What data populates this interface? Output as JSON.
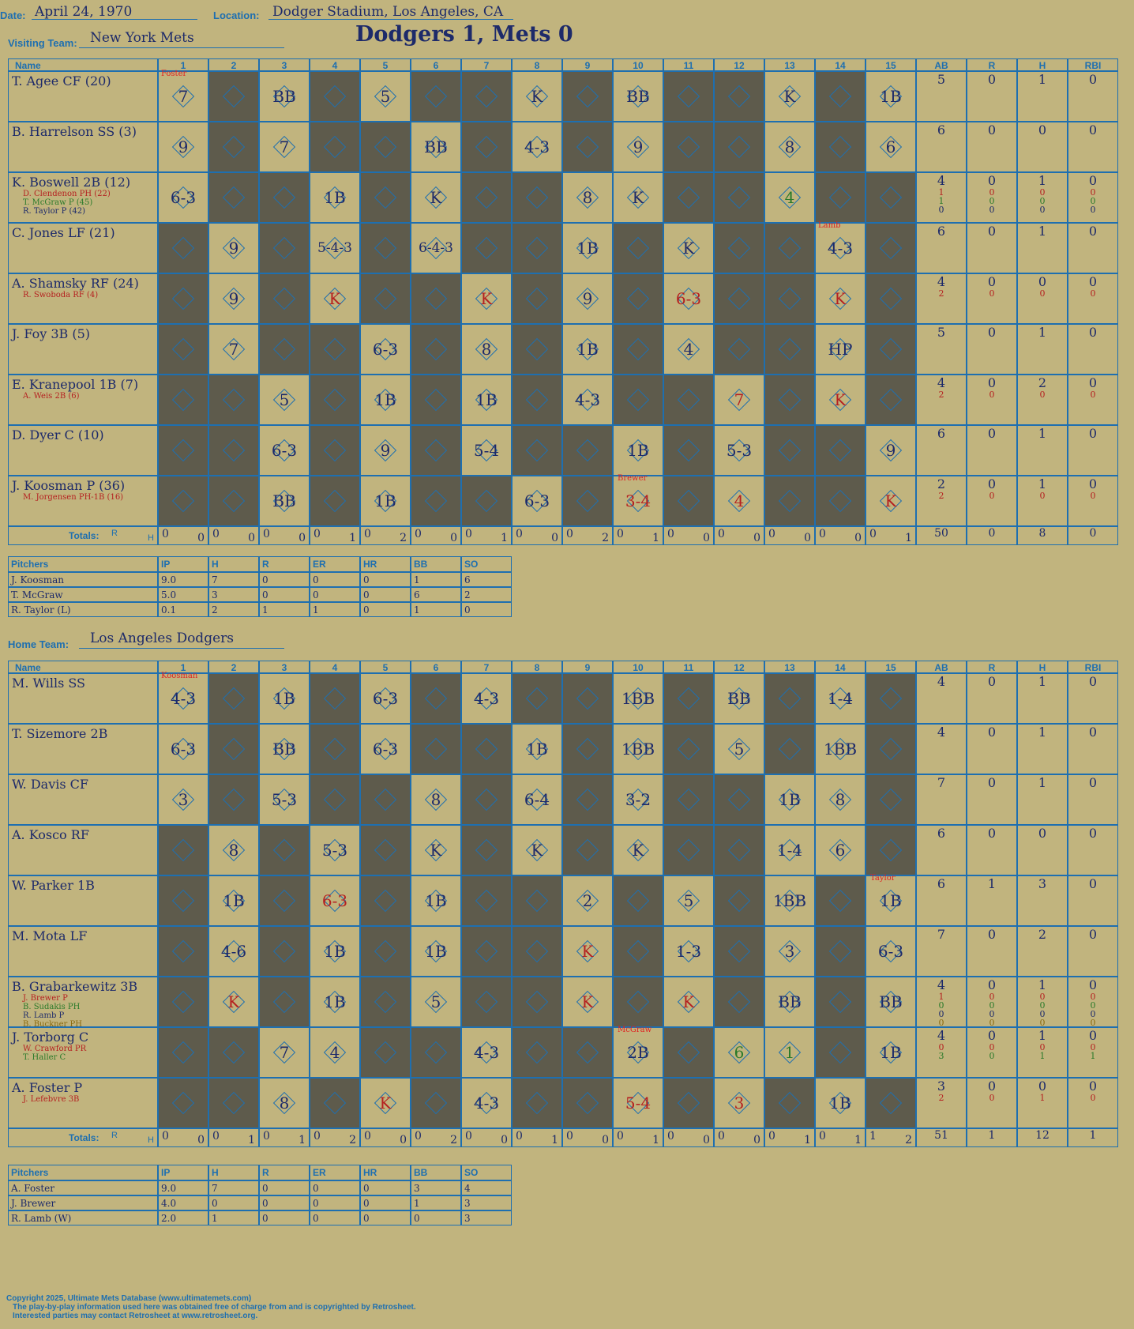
{
  "header": {
    "date_label": "Date:",
    "date": "April 24, 1970",
    "location_label": "Location:",
    "location": "Dodger Stadium, Los Angeles, CA",
    "visiting_label": "Visiting Team:",
    "visiting_team": "New York Mets",
    "title": "Dodgers 1, Mets 0",
    "home_label": "Home Team:",
    "home_team": "Los Angeles Dodgers"
  },
  "watermark": "Ultimate Mets Database ultimatemets.com",
  "columns": {
    "name": "Name",
    "innings": [
      "1",
      "2",
      "3",
      "4",
      "5",
      "6",
      "7",
      "8",
      "9",
      "10",
      "11",
      "12",
      "13",
      "14",
      "15"
    ],
    "stats": [
      "AB",
      "R",
      "H",
      "RBI"
    ]
  },
  "totals_label": "Totals:",
  "totals_rh": [
    "R",
    "H"
  ],
  "visitors": {
    "rows": [
      {
        "name": "T. Agee CF (20)",
        "subs": [],
        "stats": [
          [
            "5"
          ],
          [
            "0"
          ],
          [
            "1"
          ],
          [
            "0"
          ]
        ],
        "cells": [
          "7",
          "",
          "BB",
          "",
          "5",
          "",
          "",
          "K",
          "",
          "BB",
          "",
          "",
          "K",
          "",
          "1B"
        ],
        "dark": [
          0,
          1,
          0,
          1,
          0,
          1,
          1,
          0,
          1,
          0,
          1,
          1,
          0,
          1,
          0
        ],
        "note": "Foster"
      },
      {
        "name": "B. Harrelson SS (3)",
        "subs": [],
        "stats": [
          [
            "6"
          ],
          [
            "0"
          ],
          [
            "0"
          ],
          [
            "0"
          ]
        ],
        "cells": [
          "9",
          "",
          "7",
          "",
          "",
          "BB",
          "",
          "4-3",
          "",
          "9",
          "",
          "",
          "8",
          "",
          "6"
        ],
        "dark": [
          0,
          1,
          0,
          1,
          1,
          0,
          1,
          0,
          1,
          0,
          1,
          1,
          0,
          1,
          0
        ]
      },
      {
        "name": "K. Boswell 2B (12)",
        "subs": [
          "D. Clendenon PH (22)",
          "T. McGraw P (45)",
          "R. Taylor P (42)"
        ],
        "stats": [
          [
            "4",
            "1",
            "1",
            "0"
          ],
          [
            "0",
            "0",
            "0",
            "0"
          ],
          [
            "1",
            "0",
            "0",
            "0"
          ],
          [
            "0",
            "0",
            "0",
            "0"
          ]
        ],
        "cells": [
          "6-3",
          "",
          "",
          "1B",
          "",
          "K",
          "",
          "",
          "8",
          "K",
          "",
          "",
          "4",
          "",
          ""
        ],
        "dark": [
          0,
          1,
          1,
          0,
          1,
          0,
          1,
          1,
          0,
          0,
          1,
          1,
          0,
          1,
          1
        ]
      },
      {
        "name": "C. Jones LF (21)",
        "subs": [],
        "stats": [
          [
            "6"
          ],
          [
            "0"
          ],
          [
            "1"
          ],
          [
            "0"
          ]
        ],
        "cells": [
          "",
          "9",
          "",
          "5-4-3",
          "",
          "6-4-3",
          "",
          "",
          "1B",
          "",
          "K",
          "",
          "",
          "4-3",
          ""
        ],
        "dark": [
          1,
          0,
          1,
          0,
          1,
          0,
          1,
          1,
          0,
          1,
          0,
          1,
          1,
          0,
          1
        ],
        "note14": "Lamb"
      },
      {
        "name": "A. Shamsky RF (24)",
        "subs": [
          "R. Swoboda RF (4)"
        ],
        "stats": [
          [
            "4",
            "2"
          ],
          [
            "0",
            "0"
          ],
          [
            "0",
            "0"
          ],
          [
            "0",
            "0"
          ]
        ],
        "cells": [
          "",
          "9",
          "",
          "K",
          "",
          "",
          "K",
          "",
          "9",
          "",
          "6-3",
          "",
          "",
          "K",
          ""
        ],
        "dark": [
          1,
          0,
          1,
          0,
          1,
          1,
          0,
          1,
          0,
          1,
          0,
          1,
          1,
          0,
          1
        ]
      },
      {
        "name": "J. Foy 3B (5)",
        "subs": [],
        "stats": [
          [
            "5"
          ],
          [
            "0"
          ],
          [
            "1"
          ],
          [
            "0"
          ]
        ],
        "cells": [
          "",
          "7",
          "",
          "",
          "6-3",
          "",
          "8",
          "",
          "1B",
          "",
          "4",
          "",
          "",
          "HP",
          ""
        ],
        "dark": [
          1,
          0,
          1,
          1,
          0,
          1,
          0,
          1,
          0,
          1,
          0,
          1,
          1,
          0,
          1
        ]
      },
      {
        "name": "E. Kranepool 1B (7)",
        "subs": [
          "A. Weis 2B (6)"
        ],
        "stats": [
          [
            "4",
            "2"
          ],
          [
            "0",
            "0"
          ],
          [
            "2",
            "0"
          ],
          [
            "0",
            "0"
          ]
        ],
        "cells": [
          "",
          "",
          "5",
          "",
          "1B",
          "",
          "1B",
          "",
          "4-3",
          "",
          "",
          "7",
          "",
          "K",
          ""
        ],
        "dark": [
          1,
          1,
          0,
          1,
          0,
          1,
          0,
          1,
          0,
          1,
          1,
          0,
          1,
          0,
          1
        ]
      },
      {
        "name": "D. Dyer C (10)",
        "subs": [],
        "stats": [
          [
            "6"
          ],
          [
            "0"
          ],
          [
            "1"
          ],
          [
            "0"
          ]
        ],
        "cells": [
          "",
          "",
          "6-3",
          "",
          "9",
          "",
          "5-4",
          "",
          "",
          "1B",
          "",
          "5-3",
          "",
          "",
          "9"
        ],
        "dark": [
          1,
          1,
          0,
          1,
          0,
          1,
          0,
          1,
          1,
          0,
          1,
          0,
          1,
          1,
          0
        ]
      },
      {
        "name": "J. Koosman P (36)",
        "subs": [
          "M. Jorgensen PH-1B (16)"
        ],
        "stats": [
          [
            "2",
            "2"
          ],
          [
            "0",
            "0"
          ],
          [
            "1",
            "0"
          ],
          [
            "0",
            "0"
          ]
        ],
        "cells": [
          "",
          "",
          "BB",
          "",
          "1B",
          "",
          "",
          "6-3",
          "",
          "3-4",
          "",
          "4",
          "",
          "",
          "K"
        ],
        "dark": [
          1,
          1,
          0,
          1,
          0,
          1,
          1,
          0,
          1,
          0,
          1,
          0,
          1,
          1,
          0
        ],
        "note10": "Brewer"
      }
    ],
    "totals": [
      [
        "0",
        "0"
      ],
      [
        "0",
        "0"
      ],
      [
        "0",
        "0"
      ],
      [
        "0",
        "1"
      ],
      [
        "0",
        "2"
      ],
      [
        "0",
        "0"
      ],
      [
        "0",
        "1"
      ],
      [
        "0",
        "0"
      ],
      [
        "0",
        "2"
      ],
      [
        "0",
        "1"
      ],
      [
        "0",
        "0"
      ],
      [
        "0",
        "0"
      ],
      [
        "0",
        "0"
      ],
      [
        "0",
        "0"
      ],
      [
        "0",
        "1"
      ]
    ],
    "stat_totals": [
      "50",
      "0",
      "8",
      "0"
    ],
    "pitchers_header": [
      "Pitchers",
      "IP",
      "H",
      "R",
      "ER",
      "HR",
      "BB",
      "SO"
    ],
    "pitchers": [
      [
        "J. Koosman",
        "9.0",
        "7",
        "0",
        "0",
        "0",
        "1",
        "6"
      ],
      [
        "T. McGraw",
        "5.0",
        "3",
        "0",
        "0",
        "0",
        "6",
        "2"
      ],
      [
        "R. Taylor (L)",
        "0.1",
        "2",
        "1",
        "1",
        "0",
        "1",
        "0"
      ]
    ]
  },
  "home": {
    "rows": [
      {
        "name": "M. Wills SS",
        "subs": [],
        "stats": [
          [
            "4"
          ],
          [
            "0"
          ],
          [
            "1"
          ],
          [
            "0"
          ]
        ],
        "cells": [
          "4-3",
          "",
          "1B",
          "",
          "6-3",
          "",
          "4-3",
          "",
          "",
          "1BB",
          "",
          "BB",
          "",
          "1-4",
          ""
        ],
        "dark": [
          0,
          1,
          0,
          1,
          0,
          1,
          0,
          1,
          1,
          0,
          1,
          0,
          1,
          0,
          1
        ],
        "note": "Koosman"
      },
      {
        "name": "T. Sizemore 2B",
        "subs": [],
        "stats": [
          [
            "4"
          ],
          [
            "0"
          ],
          [
            "1"
          ],
          [
            "0"
          ]
        ],
        "cells": [
          "6-3",
          "",
          "BB",
          "",
          "6-3",
          "",
          "",
          "1B",
          "",
          "1BB",
          "",
          "5",
          "",
          "1BB",
          ""
        ],
        "dark": [
          0,
          1,
          0,
          1,
          0,
          1,
          1,
          0,
          1,
          0,
          1,
          0,
          1,
          0,
          1
        ]
      },
      {
        "name": "W. Davis CF",
        "subs": [],
        "stats": [
          [
            "7"
          ],
          [
            "0"
          ],
          [
            "1"
          ],
          [
            "0"
          ]
        ],
        "cells": [
          "3",
          "",
          "5-3",
          "",
          "",
          "8",
          "",
          "6-4",
          "",
          "3-2",
          "",
          "",
          "1B",
          "8",
          ""
        ],
        "dark": [
          0,
          1,
          0,
          1,
          1,
          0,
          1,
          0,
          1,
          0,
          1,
          1,
          0,
          0,
          1
        ]
      },
      {
        "name": "A. Kosco RF",
        "subs": [],
        "stats": [
          [
            "6"
          ],
          [
            "0"
          ],
          [
            "0"
          ],
          [
            "0"
          ]
        ],
        "cells": [
          "",
          "8",
          "",
          "5-3",
          "",
          "K",
          "",
          "K",
          "",
          "K",
          "",
          "",
          "1-4",
          "6",
          ""
        ],
        "dark": [
          1,
          0,
          1,
          0,
          1,
          0,
          1,
          0,
          1,
          0,
          1,
          1,
          0,
          0,
          1
        ]
      },
      {
        "name": "W. Parker 1B",
        "subs": [],
        "stats": [
          [
            "6"
          ],
          [
            "1"
          ],
          [
            "3"
          ],
          [
            "0"
          ]
        ],
        "cells": [
          "",
          "1B",
          "",
          "6-3",
          "",
          "1B",
          "",
          "",
          "2",
          "",
          "5",
          "",
          "1BB",
          "",
          "1B"
        ],
        "dark": [
          1,
          0,
          1,
          0,
          1,
          0,
          1,
          1,
          0,
          1,
          0,
          1,
          0,
          1,
          0
        ],
        "note15": "Taylor"
      },
      {
        "name": "M. Mota LF",
        "subs": [],
        "stats": [
          [
            "7"
          ],
          [
            "0"
          ],
          [
            "2"
          ],
          [
            "0"
          ]
        ],
        "cells": [
          "",
          "4-6",
          "",
          "1B",
          "",
          "1B",
          "",
          "",
          "K",
          "",
          "1-3",
          "",
          "3",
          "",
          "6-3"
        ],
        "dark": [
          1,
          0,
          1,
          0,
          1,
          0,
          1,
          1,
          0,
          1,
          0,
          1,
          0,
          1,
          0
        ]
      },
      {
        "name": "B. Grabarkewitz 3B",
        "subs": [
          "J. Brewer P",
          "B. Sudakis PH",
          "R. Lamb P",
          "B. Buckner PH"
        ],
        "stats": [
          [
            "4",
            "1",
            "0",
            "0",
            "0"
          ],
          [
            "0",
            "0",
            "0",
            "0",
            "0"
          ],
          [
            "1",
            "0",
            "0",
            "0",
            "0"
          ],
          [
            "0",
            "0",
            "0",
            "0",
            "0"
          ]
        ],
        "cells": [
          "",
          "K",
          "",
          "1B",
          "",
          "5",
          "",
          "",
          "K",
          "",
          "K",
          "",
          "BB",
          "",
          "BB"
        ],
        "dark": [
          1,
          0,
          1,
          0,
          1,
          0,
          1,
          1,
          0,
          1,
          0,
          1,
          0,
          1,
          0
        ]
      },
      {
        "name": "J. Torborg C",
        "subs": [
          "W. Crawford PR",
          "T. Haller C"
        ],
        "stats": [
          [
            "4",
            "0",
            "3"
          ],
          [
            "0",
            "0",
            "0"
          ],
          [
            "1",
            "0",
            "1"
          ],
          [
            "0",
            "0",
            "1"
          ]
        ],
        "cells": [
          "",
          "",
          "7",
          "4",
          "",
          "",
          "4-3",
          "",
          "",
          "2B",
          "",
          "6",
          "1",
          "",
          "1B"
        ],
        "dark": [
          1,
          1,
          0,
          0,
          1,
          1,
          0,
          1,
          1,
          0,
          1,
          0,
          0,
          1,
          0
        ],
        "note10": "McGraw"
      },
      {
        "name": "A. Foster P",
        "subs": [
          "J. Lefebvre 3B"
        ],
        "stats": [
          [
            "3",
            "2"
          ],
          [
            "0",
            "0"
          ],
          [
            "0",
            "1"
          ],
          [
            "0",
            "0"
          ]
        ],
        "cells": [
          "",
          "",
          "8",
          "",
          "K",
          "",
          "4-3",
          "",
          "",
          "5-4",
          "",
          "3",
          "",
          "1B",
          ""
        ],
        "dark": [
          1,
          1,
          0,
          1,
          0,
          1,
          0,
          1,
          1,
          0,
          1,
          0,
          1,
          0,
          1
        ]
      }
    ],
    "totals": [
      [
        "0",
        "0"
      ],
      [
        "0",
        "1"
      ],
      [
        "0",
        "1"
      ],
      [
        "0",
        "2"
      ],
      [
        "0",
        "0"
      ],
      [
        "0",
        "2"
      ],
      [
        "0",
        "0"
      ],
      [
        "0",
        "1"
      ],
      [
        "0",
        "0"
      ],
      [
        "0",
        "1"
      ],
      [
        "0",
        "0"
      ],
      [
        "0",
        "0"
      ],
      [
        "0",
        "1"
      ],
      [
        "0",
        "1"
      ],
      [
        "1",
        "2"
      ]
    ],
    "stat_totals": [
      "51",
      "1",
      "12",
      "1"
    ],
    "pitchers_header": [
      "Pitchers",
      "IP",
      "H",
      "R",
      "ER",
      "HR",
      "BB",
      "SO"
    ],
    "pitchers": [
      [
        "A. Foster",
        "9.0",
        "7",
        "0",
        "0",
        "0",
        "3",
        "4"
      ],
      [
        "J. Brewer",
        "4.0",
        "0",
        "0",
        "0",
        "0",
        "1",
        "3"
      ],
      [
        "R. Lamb (W)",
        "2.0",
        "1",
        "0",
        "0",
        "0",
        "0",
        "3"
      ]
    ]
  },
  "footer": [
    "Copyright 2025, Ultimate Mets Database (www.ultimatemets.com)",
    "The play-by-play information used here was obtained free of charge from and is copyrighted by Retrosheet.",
    "Interested parties may contact Retrosheet at www.retrosheet.org."
  ]
}
